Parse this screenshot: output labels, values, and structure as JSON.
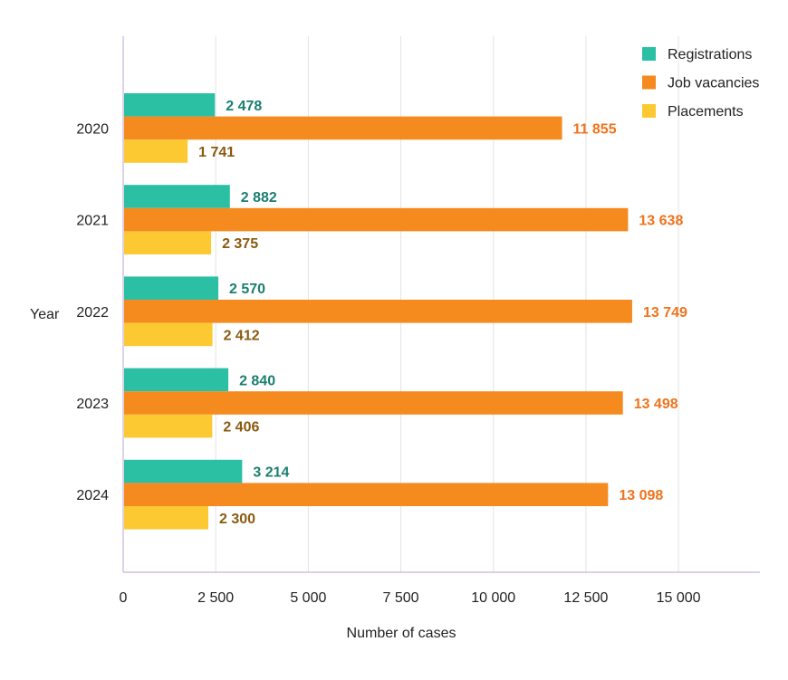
{
  "chart_data": {
    "type": "bar",
    "orientation": "horizontal",
    "categories": [
      "2020",
      "2021",
      "2022",
      "2023",
      "2024"
    ],
    "series": [
      {
        "name": "Registrations",
        "color": "#2bbfa4",
        "label_color": "#1a7f6e",
        "values": [
          2478,
          2882,
          2570,
          2840,
          3214
        ],
        "labels": [
          "2 478",
          "2 882",
          "2 570",
          "2 840",
          "3 214"
        ]
      },
      {
        "name": "Job vacancies",
        "color": "#f58a1f",
        "label_color": "#f0731c",
        "values": [
          11855,
          13638,
          13749,
          13498,
          13098
        ],
        "labels": [
          "11 855",
          "13 638",
          "13 749",
          "13 498",
          "13 098"
        ]
      },
      {
        "name": "Placements",
        "color": "#fcc932",
        "label_color": "#8a5a10",
        "values": [
          1741,
          2375,
          2412,
          2406,
          2300
        ],
        "labels": [
          "1 741",
          "2 375",
          "2 412",
          "2 406",
          "2 300"
        ]
      }
    ],
    "xlabel": "Number of cases",
    "ylabel": "Year",
    "xlim": [
      0,
      17200
    ],
    "xticks": [
      0,
      2500,
      5000,
      7500,
      10000,
      12500,
      15000
    ],
    "xtick_labels": [
      "0",
      "2 500",
      "5 000",
      "7 500",
      "10 000",
      "12 500",
      "15 000"
    ],
    "grid": "vertical",
    "legend_position": "top-right"
  }
}
